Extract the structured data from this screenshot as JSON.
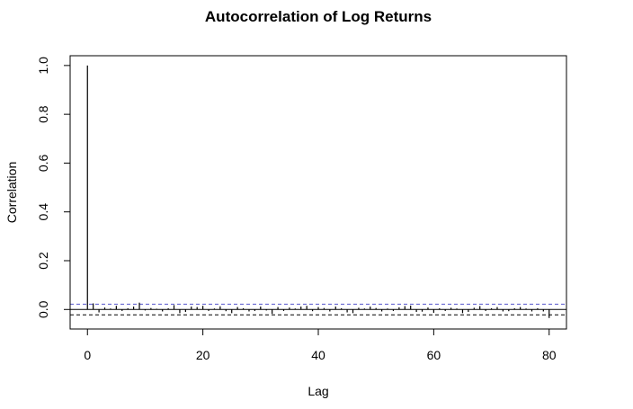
{
  "chart_data": {
    "type": "bar",
    "title": "Autocorrelation of Log Returns",
    "xlabel": "Lag",
    "ylabel": "Correlation",
    "xlim": [
      -3,
      83
    ],
    "ylim": [
      -0.08,
      1.04
    ],
    "xticks": [
      0,
      20,
      40,
      60,
      80
    ],
    "xtick_labels": [
      "0",
      "20",
      "40",
      "60",
      "80"
    ],
    "yticks": [
      0.0,
      0.2,
      0.4,
      0.6,
      0.8,
      1.0
    ],
    "ytick_labels": [
      "0.0",
      "0.2",
      "0.4",
      "0.6",
      "0.8",
      "1.0"
    ],
    "lags": [
      0,
      1,
      2,
      3,
      4,
      5,
      6,
      7,
      8,
      9,
      10,
      11,
      12,
      13,
      14,
      15,
      16,
      17,
      18,
      19,
      20,
      21,
      22,
      23,
      24,
      25,
      26,
      27,
      28,
      29,
      30,
      31,
      32,
      33,
      34,
      35,
      36,
      37,
      38,
      39,
      40,
      41,
      42,
      43,
      44,
      45,
      46,
      47,
      48,
      49,
      50,
      51,
      52,
      53,
      54,
      55,
      56,
      57,
      58,
      59,
      60,
      61,
      62,
      63,
      64,
      65,
      66,
      67,
      68,
      69,
      70,
      71,
      72,
      73,
      74,
      75,
      76,
      77,
      78,
      79,
      80
    ],
    "values": [
      1.0,
      0.025,
      -0.012,
      0.008,
      0.004,
      0.015,
      -0.006,
      0.005,
      0.012,
      0.028,
      -0.004,
      0.006,
      0.003,
      -0.008,
      0.005,
      0.018,
      -0.015,
      -0.01,
      0.012,
      0.01,
      0.015,
      -0.006,
      0.004,
      0.013,
      -0.007,
      -0.015,
      0.01,
      0.005,
      -0.008,
      -0.006,
      0.012,
      -0.004,
      -0.018,
      0.01,
      -0.006,
      0.008,
      0.004,
      0.012,
      0.015,
      -0.007,
      0.01,
      0.006,
      -0.008,
      0.012,
      0.005,
      -0.012,
      -0.015,
      0.007,
      0.004,
      0.012,
      0.006,
      -0.008,
      0.004,
      -0.006,
      0.009,
      0.014,
      0.016,
      -0.01,
      -0.009,
      0.008,
      -0.014,
      0.005,
      -0.006,
      0.007,
      0.004,
      -0.015,
      -0.01,
      0.007,
      0.014,
      -0.006,
      0.005,
      0.01,
      -0.008,
      -0.007,
      0.005,
      0.01,
      0.004,
      -0.008,
      0.005,
      -0.008,
      -0.035
    ],
    "ci_upper": 0.022,
    "ci_lower": -0.022,
    "colors": {
      "bars": "#000000",
      "zero_line": "#000000",
      "ci_upper": "#5555cc",
      "ci_lower": "#000000"
    },
    "grid": false
  }
}
